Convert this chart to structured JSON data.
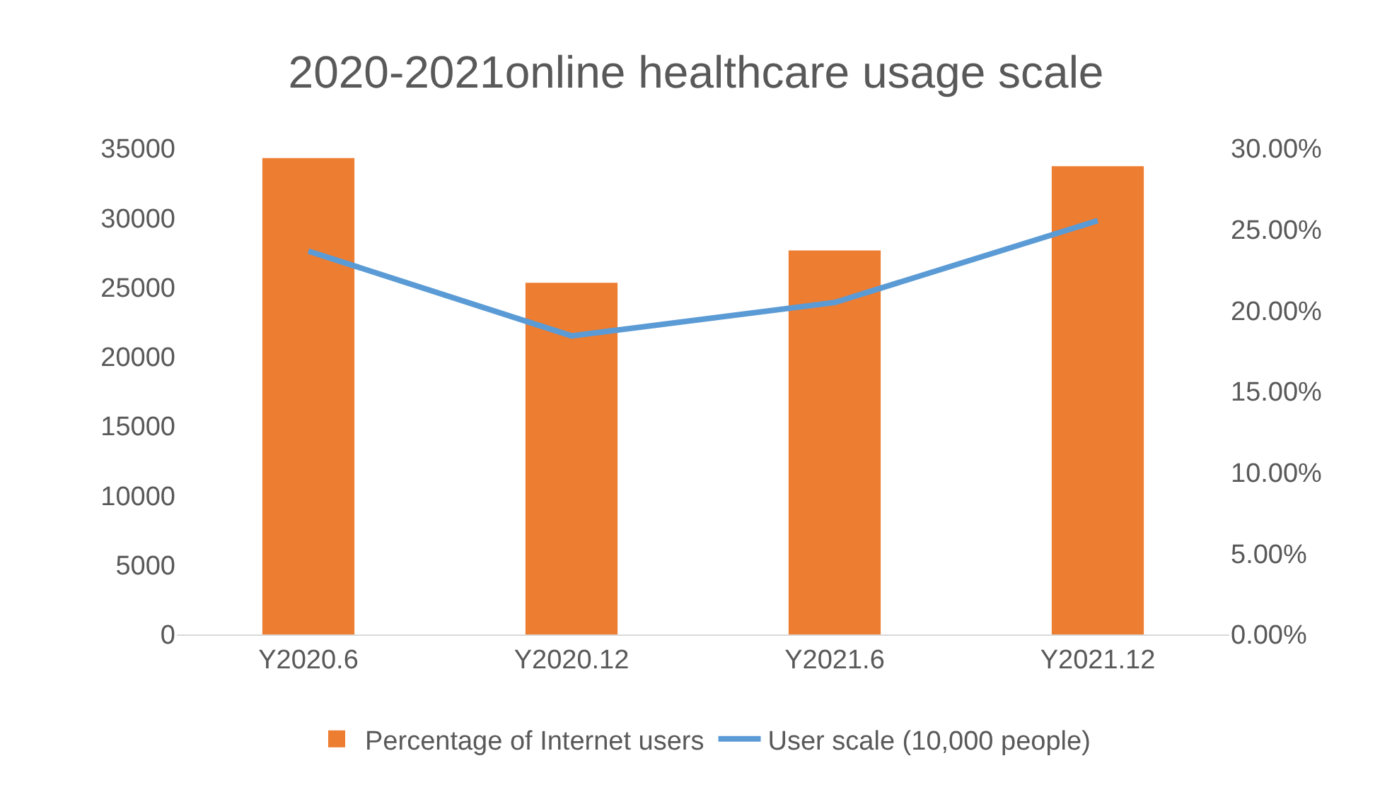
{
  "chart_data": {
    "type": "bar",
    "title": "2020-2021online healthcare usage scale",
    "categories": [
      "Y2020.6",
      "Y2020.12",
      "Y2021.6",
      "Y2021.12"
    ],
    "series": [
      {
        "name": "Percentage of Internet users",
        "axis": "y2",
        "color": "#ed7d31",
        "values": [
          29.4,
          21.7,
          23.7,
          28.9
        ]
      },
      {
        "name": "User scale (10,000 people)",
        "type": "line",
        "axis": "y",
        "color": "#5b9bd5",
        "values": [
          27600,
          21500,
          23900,
          29800
        ]
      }
    ],
    "ylim": [
      0,
      35000
    ],
    "yticks": [
      0,
      5000,
      10000,
      15000,
      20000,
      25000,
      30000,
      35000
    ],
    "y2lim": [
      0,
      30
    ],
    "y2ticks": [
      {
        "value": 0,
        "label": "0.00%"
      },
      {
        "value": 5,
        "label": "5.00%"
      },
      {
        "value": 10,
        "label": "10.00%"
      },
      {
        "value": 15,
        "label": "15.00%"
      },
      {
        "value": 20,
        "label": "20.00%"
      },
      {
        "value": 25,
        "label": "25.00%"
      },
      {
        "value": 30,
        "label": "30.00%"
      }
    ],
    "grid": false,
    "legend": "bottom",
    "marker": "none",
    "line_style": "solid"
  }
}
